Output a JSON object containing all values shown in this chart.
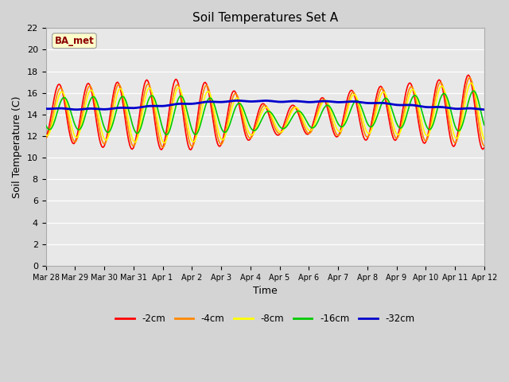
{
  "title": "Soil Temperatures Set A",
  "xlabel": "Time",
  "ylabel": "Soil Temperature (C)",
  "ylim": [
    0,
    22
  ],
  "yticks": [
    0,
    2,
    4,
    6,
    8,
    10,
    12,
    14,
    16,
    18,
    20,
    22
  ],
  "annotation": "BA_met",
  "annotation_color": "#8b0000",
  "annotation_bg": "#ffffcc",
  "series_colors": {
    "-2cm": "#ff0000",
    "-4cm": "#ff8800",
    "-8cm": "#ffff00",
    "-16cm": "#00cc00",
    "-32cm": "#0000cc"
  },
  "series_lw": {
    "-2cm": 1.2,
    "-4cm": 1.2,
    "-8cm": 1.2,
    "-16cm": 1.2,
    "-32cm": 2.0
  },
  "date_labels": [
    "Mar 28",
    "Mar 29",
    "Mar 30",
    "Mar 31",
    "Apr 1",
    "Apr 2",
    "Apr 3",
    "Apr 4",
    "Apr 5",
    "Apr 6",
    "Apr 7",
    "Apr 8",
    "Apr 9",
    "Apr 10",
    "Apr 11",
    "Apr 12"
  ],
  "fig_width": 6.4,
  "fig_height": 4.8,
  "dpi": 100
}
